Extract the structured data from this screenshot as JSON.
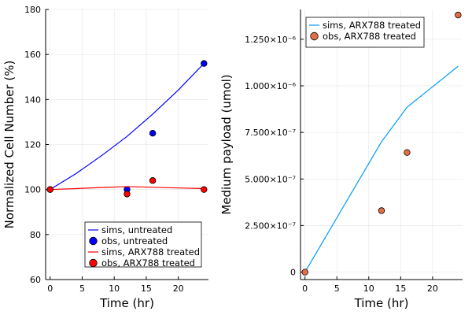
{
  "chart_data": [
    {
      "type": "line",
      "xlabel": "Time (hr)",
      "ylabel": "Normalized Cell Number (%)",
      "xlim": [
        -0.7,
        24.7
      ],
      "ylim": [
        60,
        180
      ],
      "xticks": [
        0,
        5,
        10,
        15,
        20
      ],
      "yticks": [
        60,
        80,
        100,
        120,
        140,
        160,
        180
      ],
      "xtick_labels": [
        "0",
        "5",
        "10",
        "15",
        "20"
      ],
      "ytick_labels": [
        "60",
        "80",
        "100",
        "120",
        "140",
        "160",
        "180"
      ],
      "grid": true,
      "legend_position": "bottom-right",
      "series": [
        {
          "name": "sims, untreated",
          "kind": "line",
          "color": "#0000ff",
          "x": [
            0,
            4,
            8,
            12,
            16,
            20,
            24
          ],
          "y": [
            100,
            107,
            115,
            123.6,
            133.5,
            144.2,
            156
          ]
        },
        {
          "name": "obs, untreated",
          "kind": "scatter",
          "color": "#0000ff",
          "x": [
            0,
            12,
            16,
            24
          ],
          "y": [
            100,
            100,
            125,
            156
          ]
        },
        {
          "name": "sims, ARX788 treated",
          "kind": "line",
          "color": "#ff0000",
          "x": [
            0,
            4,
            8,
            12,
            16,
            20,
            24
          ],
          "y": [
            100,
            100.4,
            100.9,
            101.3,
            101,
            100.7,
            100.4
          ]
        },
        {
          "name": "obs, ARX788 treated",
          "kind": "scatter",
          "color": "#ff0000",
          "x": [
            0,
            12,
            16,
            24
          ],
          "y": [
            100,
            98,
            104,
            100
          ]
        }
      ]
    },
    {
      "type": "line",
      "xlabel": "Time (hr)",
      "ylabel": "Medium payload (umol)",
      "xlim": [
        -0.7,
        24.7
      ],
      "ylim": [
        -4e-08,
        1.41e-06
      ],
      "xticks": [
        0,
        5,
        10,
        15,
        20
      ],
      "yticks": [
        0,
        2.5e-07,
        5e-07,
        7.5e-07,
        1e-06,
        1.25e-06
      ],
      "xtick_labels": [
        "0",
        "5",
        "10",
        "15",
        "20"
      ],
      "ytick_labels": [
        "0",
        "2.500×10⁻⁷",
        "5.000×10⁻⁷",
        "7.500×10⁻⁷",
        "1.000×10⁻⁶",
        "1.250×10⁻⁶"
      ],
      "grid": true,
      "legend_position": "top-left",
      "series": [
        {
          "name": "sims, ARX788 treated",
          "kind": "line",
          "color": "#009af9",
          "x": [
            0,
            6,
            12,
            16,
            20,
            24
          ],
          "y": [
            0,
            3.5e-07,
            7e-07,
            8.85e-07,
            9.95e-07,
            1.105e-06
          ]
        },
        {
          "name": "obs, ARX788 treated",
          "kind": "scatter",
          "color": "#e26f46",
          "x": [
            0,
            12,
            16,
            24
          ],
          "y": [
            0,
            3.3e-07,
            6.42e-07,
            1.38e-06
          ]
        }
      ]
    }
  ]
}
